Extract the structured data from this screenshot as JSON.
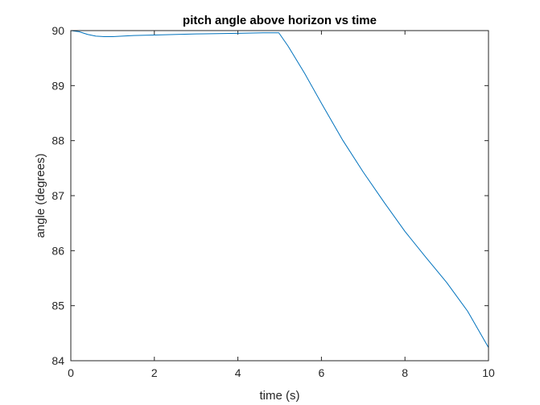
{
  "chart_data": {
    "type": "line",
    "title": "pitch angle above horizon vs time",
    "xlabel": "time (s)",
    "ylabel": "angle (degrees)",
    "xlim": [
      0,
      10
    ],
    "ylim": [
      84,
      90
    ],
    "xticks": [
      0,
      2,
      4,
      6,
      8,
      10
    ],
    "yticks": [
      84,
      85,
      86,
      87,
      88,
      89,
      90
    ],
    "grid": false,
    "legend": "none",
    "series": [
      {
        "color": "#0072BD",
        "x": [
          0,
          0.2,
          0.4,
          0.6,
          0.8,
          1.0,
          1.5,
          2.0,
          3.0,
          4.0,
          4.6,
          4.98,
          5.2,
          5.6,
          6.0,
          6.5,
          7.0,
          7.5,
          8.0,
          8.5,
          9.0,
          9.5,
          10.0
        ],
        "values": [
          90.0,
          89.98,
          89.93,
          89.9,
          89.89,
          89.89,
          89.91,
          89.92,
          89.94,
          89.95,
          89.96,
          89.96,
          89.72,
          89.22,
          88.68,
          88.02,
          87.43,
          86.88,
          86.35,
          85.88,
          85.42,
          84.9,
          84.24
        ]
      }
    ]
  }
}
